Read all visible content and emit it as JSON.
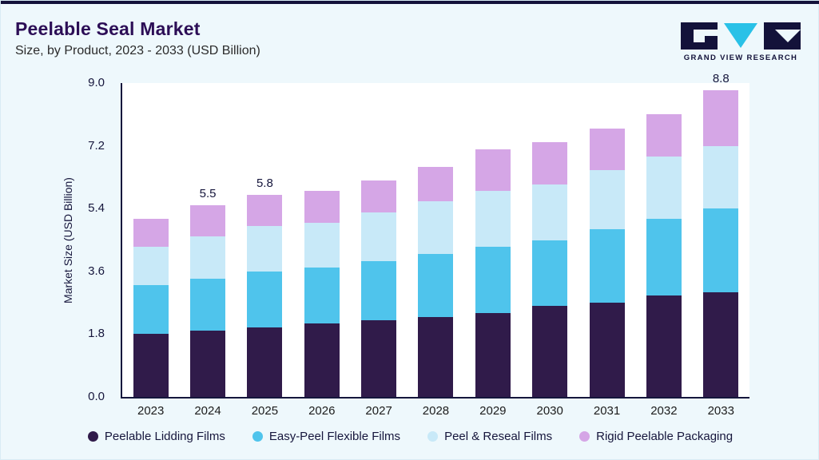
{
  "header": {
    "title": "Peelable Seal Market",
    "subtitle": "Size, by Product, 2023 - 2033 (USD Billion)",
    "logo_text": "GRAND VIEW RESEARCH"
  },
  "colors": {
    "accent_bar": "#13123a",
    "title": "#2c0e56",
    "logo_navy": "#13123a",
    "logo_cyan": "#29c1e7"
  },
  "chart_data": {
    "type": "bar",
    "stacked": true,
    "title": "Peelable Seal Market",
    "subtitle": "Size, by Product, 2023 - 2033 (USD Billion)",
    "xlabel": "",
    "ylabel": "Market Size (USD Billion)",
    "ylim": [
      0,
      9.0
    ],
    "yticks": [
      "0.0",
      "1.8",
      "3.6",
      "5.4",
      "7.2",
      "9.0"
    ],
    "grid": false,
    "legend_position": "bottom",
    "categories": [
      "2023",
      "2024",
      "2025",
      "2026",
      "2027",
      "2028",
      "2029",
      "2030",
      "2031",
      "2032",
      "2033"
    ],
    "series": [
      {
        "name": "Peelable Lidding Films",
        "color": "#301b4a",
        "values": [
          1.8,
          1.9,
          2.0,
          2.1,
          2.2,
          2.3,
          2.4,
          2.6,
          2.7,
          2.9,
          3.0
        ]
      },
      {
        "name": "Easy-Peel Flexible Films",
        "color": "#4fc4ec",
        "values": [
          1.4,
          1.5,
          1.6,
          1.6,
          1.7,
          1.8,
          1.9,
          1.9,
          2.1,
          2.2,
          2.4
        ]
      },
      {
        "name": "Peel & Reseal Films",
        "color": "#c8e9f8",
        "values": [
          1.1,
          1.2,
          1.3,
          1.3,
          1.4,
          1.5,
          1.6,
          1.6,
          1.7,
          1.8,
          1.8
        ]
      },
      {
        "name": "Rigid Peelable Packaging",
        "color": "#d5a6e6",
        "values": [
          0.8,
          0.9,
          0.9,
          0.9,
          0.9,
          1.0,
          1.2,
          1.2,
          1.2,
          1.2,
          1.6
        ]
      }
    ],
    "totals": [
      5.1,
      5.5,
      5.8,
      5.9,
      6.2,
      6.6,
      7.1,
      7.3,
      7.7,
      8.1,
      8.8
    ],
    "totals_labeled": {
      "2024": "5.5",
      "2025": "5.8",
      "2033": "8.8"
    }
  }
}
